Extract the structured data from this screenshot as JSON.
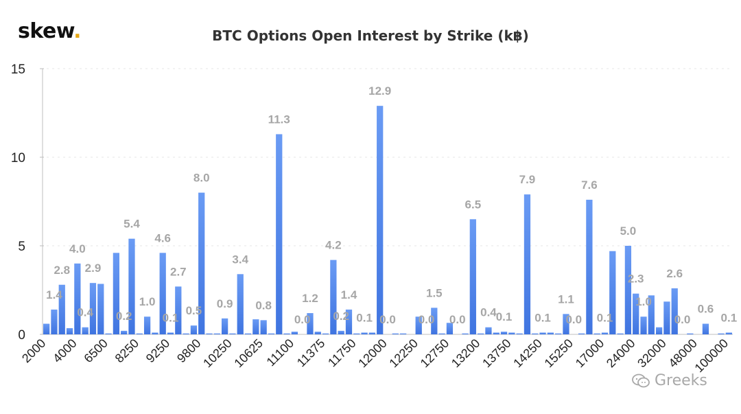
{
  "brand": {
    "name": "skew",
    "dot": ".",
    "dot_color": "#e6a817"
  },
  "watermark": {
    "text": "Greeks",
    "icon": "wechat-bubble-icon"
  },
  "chart_data": {
    "type": "bar",
    "title": "BTC Options Open Interest by Strike (k฿)",
    "xlabel": "",
    "ylabel": "",
    "ylim": [
      0,
      15
    ],
    "yticks": [
      0,
      5,
      10,
      15
    ],
    "grid": false,
    "bar_color": "#5b8ff0",
    "label_color": "#a6a6a6",
    "tick_labels": [
      "2000",
      "4000",
      "6500",
      "8250",
      "9250",
      "9800",
      "10250",
      "10625",
      "11100",
      "11375",
      "11750",
      "12000",
      "12250",
      "12750",
      "13200",
      "13750",
      "14250",
      "15250",
      "17000",
      "24000",
      "32000",
      "48000",
      "100000"
    ],
    "tick_label_index_step": 4,
    "values": [
      0.6,
      1.4,
      2.8,
      0.35,
      4.0,
      0.4,
      2.9,
      2.85,
      0.05,
      4.6,
      0.2,
      5.4,
      0.05,
      1.0,
      0.1,
      4.6,
      0.1,
      2.7,
      0.05,
      0.5,
      8.0,
      0.05,
      0.05,
      0.9,
      0.05,
      3.4,
      0.05,
      0.85,
      0.8,
      0.05,
      11.3,
      0.05,
      0.15,
      0.0,
      1.2,
      0.15,
      0.05,
      4.2,
      0.2,
      1.4,
      0.05,
      0.1,
      0.1,
      12.9,
      0.0,
      0.05,
      0.05,
      0.0,
      1.0,
      0.0,
      1.5,
      0.05,
      0.65,
      0.0,
      0.05,
      6.5,
      0.05,
      0.4,
      0.1,
      0.15,
      0.1,
      0.05,
      7.9,
      0.05,
      0.1,
      0.1,
      0.05,
      1.15,
      0.0,
      0.05,
      7.6,
      0.05,
      0.1,
      4.7,
      0.05,
      5.0,
      2.3,
      1.0,
      2.2,
      0.4,
      1.85,
      2.6,
      0.0,
      0.05,
      0.0,
      0.6,
      0.0,
      0.05,
      0.1
    ],
    "data_labels": [
      {
        "i": 1,
        "text": "1.4"
      },
      {
        "i": 2,
        "text": "2.8"
      },
      {
        "i": 4,
        "text": "4.0"
      },
      {
        "i": 5,
        "text": "0.4"
      },
      {
        "i": 6,
        "text": "2.9"
      },
      {
        "i": 10,
        "text": "0.2"
      },
      {
        "i": 11,
        "text": "5.4"
      },
      {
        "i": 13,
        "text": "1.0"
      },
      {
        "i": 15,
        "text": "4.6"
      },
      {
        "i": 16,
        "text": "0.1"
      },
      {
        "i": 17,
        "text": "2.7"
      },
      {
        "i": 19,
        "text": "0.5"
      },
      {
        "i": 20,
        "text": "8.0"
      },
      {
        "i": 23,
        "text": "0.9"
      },
      {
        "i": 25,
        "text": "3.4"
      },
      {
        "i": 28,
        "text": "0.8"
      },
      {
        "i": 30,
        "text": "11.3"
      },
      {
        "i": 33,
        "text": "0.0"
      },
      {
        "i": 34,
        "text": "1.2"
      },
      {
        "i": 37,
        "text": "4.2"
      },
      {
        "i": 38,
        "text": "0.2"
      },
      {
        "i": 39,
        "text": "1.4"
      },
      {
        "i": 41,
        "text": "0.1"
      },
      {
        "i": 43,
        "text": "12.9"
      },
      {
        "i": 44,
        "text": "0.0"
      },
      {
        "i": 49,
        "text": "0.0"
      },
      {
        "i": 50,
        "text": "1.5"
      },
      {
        "i": 53,
        "text": "0.0"
      },
      {
        "i": 55,
        "text": "6.5"
      },
      {
        "i": 57,
        "text": "0.4"
      },
      {
        "i": 59,
        "text": "0.1"
      },
      {
        "i": 62,
        "text": "7.9"
      },
      {
        "i": 64,
        "text": "0.1"
      },
      {
        "i": 67,
        "text": "1.1"
      },
      {
        "i": 68,
        "text": "0.0"
      },
      {
        "i": 70,
        "text": "7.6"
      },
      {
        "i": 72,
        "text": "0.1"
      },
      {
        "i": 75,
        "text": "5.0"
      },
      {
        "i": 76,
        "text": "2.3"
      },
      {
        "i": 77,
        "text": "1.0"
      },
      {
        "i": 81,
        "text": "2.6"
      },
      {
        "i": 82,
        "text": "0.0"
      },
      {
        "i": 85,
        "text": "0.6"
      },
      {
        "i": 88,
        "text": "0.1"
      }
    ]
  }
}
